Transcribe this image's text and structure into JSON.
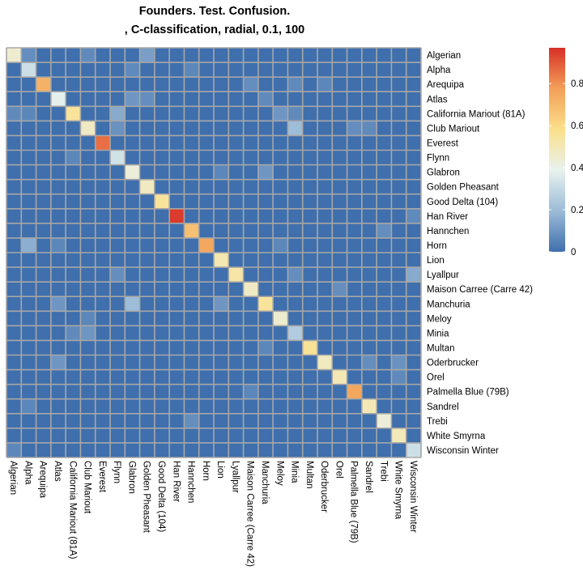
{
  "chart_data": {
    "type": "heatmap",
    "title": "Founders. Test. Confusion.",
    "subtitle": ", C-classification, radial, 0.1, 100",
    "row_labels": [
      "Algerian",
      "Alpha",
      "Arequipa",
      "Atlas",
      "California Mariout (81A)",
      "Club Mariout",
      "Everest",
      "Flynn",
      "Glabron",
      "Golden Pheasant",
      "Good Delta (104)",
      "Han River",
      "Hannchen",
      "Horn",
      "Lion",
      "Lyallpur",
      "Maison Carree (Carre 42)",
      "Manchuria",
      "Meloy",
      "Minia",
      "Multan",
      "Oderbrucker",
      "Orel",
      "Palmella Blue (79B)",
      "Sandrel",
      "Trebi",
      "White Smyrna",
      "Wisconsin Winter"
    ],
    "col_labels": [
      "Algerian",
      "Alpha",
      "Arequipa",
      "Atlas",
      "California Mariout (81A)",
      "Club Mariout",
      "Everest",
      "Flynn",
      "Glabron",
      "Golden Pheasant",
      "Good Delta (104)",
      "Han River",
      "Hannchen",
      "Horn",
      "Lion",
      "Lyallpur",
      "Maison Carree (Carre 42)",
      "Manchuria",
      "Meloy",
      "Minia",
      "Multan",
      "Oderbrucker",
      "Orel",
      "Palmella Blue (79B)",
      "Sandrel",
      "Trebi",
      "White Smyrna",
      "Wisconsin Winter"
    ],
    "diagonal": [
      0.45,
      0.32,
      0.72,
      0.38,
      0.55,
      0.47,
      0.86,
      0.33,
      0.43,
      0.48,
      0.55,
      0.95,
      0.68,
      0.75,
      0.51,
      0.53,
      0.47,
      0.55,
      0.45,
      0.25,
      0.56,
      0.48,
      0.5,
      0.75,
      0.5,
      0.43,
      0.49,
      0.32
    ],
    "off_diagonal": [
      {
        "row": 0,
        "col": 1,
        "value": 0.08
      },
      {
        "row": 0,
        "col": 5,
        "value": 0.07
      },
      {
        "row": 0,
        "col": 9,
        "value": 0.12
      },
      {
        "row": 1,
        "col": 8,
        "value": 0.07
      },
      {
        "row": 1,
        "col": 12,
        "value": 0.06
      },
      {
        "row": 2,
        "col": 16,
        "value": 0.08
      },
      {
        "row": 2,
        "col": 19,
        "value": 0.07
      },
      {
        "row": 2,
        "col": 21,
        "value": 0.06
      },
      {
        "row": 3,
        "col": 8,
        "value": 0.1
      },
      {
        "row": 3,
        "col": 9,
        "value": 0.08
      },
      {
        "row": 3,
        "col": 17,
        "value": 0.07
      },
      {
        "row": 4,
        "col": 0,
        "value": 0.07
      },
      {
        "row": 4,
        "col": 1,
        "value": 0.06
      },
      {
        "row": 4,
        "col": 7,
        "value": 0.15
      },
      {
        "row": 4,
        "col": 18,
        "value": 0.1
      },
      {
        "row": 4,
        "col": 19,
        "value": 0.07
      },
      {
        "row": 5,
        "col": 7,
        "value": 0.09
      },
      {
        "row": 5,
        "col": 19,
        "value": 0.2
      },
      {
        "row": 5,
        "col": 23,
        "value": 0.08
      },
      {
        "row": 5,
        "col": 24,
        "value": 0.07
      },
      {
        "row": 7,
        "col": 4,
        "value": 0.06
      },
      {
        "row": 8,
        "col": 14,
        "value": 0.06
      },
      {
        "row": 8,
        "col": 17,
        "value": 0.1
      },
      {
        "row": 11,
        "col": 27,
        "value": 0.07
      },
      {
        "row": 12,
        "col": 25,
        "value": 0.08
      },
      {
        "row": 13,
        "col": 1,
        "value": 0.16
      },
      {
        "row": 13,
        "col": 3,
        "value": 0.06
      },
      {
        "row": 13,
        "col": 18,
        "value": 0.06
      },
      {
        "row": 15,
        "col": 7,
        "value": 0.08
      },
      {
        "row": 15,
        "col": 19,
        "value": 0.08
      },
      {
        "row": 15,
        "col": 27,
        "value": 0.15
      },
      {
        "row": 16,
        "col": 22,
        "value": 0.08
      },
      {
        "row": 17,
        "col": 3,
        "value": 0.1
      },
      {
        "row": 17,
        "col": 8,
        "value": 0.2
      },
      {
        "row": 17,
        "col": 14,
        "value": 0.1
      },
      {
        "row": 18,
        "col": 5,
        "value": 0.06
      },
      {
        "row": 19,
        "col": 4,
        "value": 0.07
      },
      {
        "row": 19,
        "col": 5,
        "value": 0.1
      },
      {
        "row": 20,
        "col": 17,
        "value": 0.06
      },
      {
        "row": 21,
        "col": 3,
        "value": 0.1
      },
      {
        "row": 21,
        "col": 24,
        "value": 0.08
      },
      {
        "row": 21,
        "col": 26,
        "value": 0.09
      },
      {
        "row": 22,
        "col": 26,
        "value": 0.07
      },
      {
        "row": 23,
        "col": 16,
        "value": 0.06
      },
      {
        "row": 24,
        "col": 1,
        "value": 0.06
      },
      {
        "row": 25,
        "col": 12,
        "value": 0.08
      },
      {
        "row": 27,
        "col": 0,
        "value": 0.06
      }
    ],
    "colorbar": {
      "colors": [
        "#3f6fad",
        "#9cbbd7",
        "#e8f2ee",
        "#fbe08b",
        "#f39f58",
        "#d73027"
      ],
      "ticks": [
        0,
        0.2,
        0.4,
        0.6,
        0.8
      ],
      "tick_labels": [
        "0",
        "0.2",
        "0.4",
        "0.6",
        "0.8"
      ],
      "range": [
        0,
        0.97
      ]
    },
    "grid_color": "#a7a7a7"
  }
}
